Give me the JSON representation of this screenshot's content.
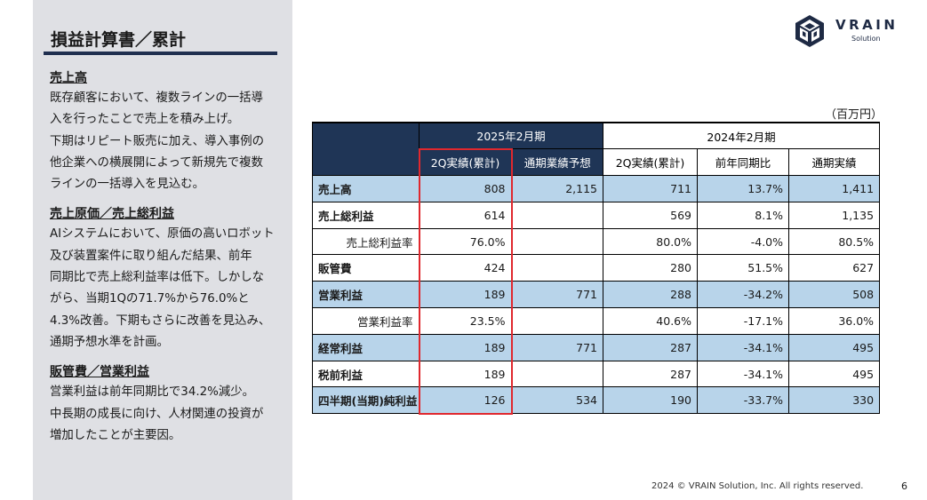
{
  "sidebar": {
    "title": "損益計算書／累計",
    "sections": [
      {
        "heading": "売上高",
        "lines": [
          "既存顧客において、複数ラインの一括導",
          "入を行ったことで売上を積み上げ。",
          "下期はリピート販売に加え、導入事例の",
          "他企業への横展開によって新規先で複数",
          "ラインの一括導入を見込む。"
        ]
      },
      {
        "heading": "売上原価／売上総利益",
        "lines": [
          "AIシステムにおいて、原価の高いロボット",
          "及び装置案件に取り組んだ結果、前年",
          "同期比で売上総利益率は低下。しかしな",
          "がら、当期1Qの71.7%から76.0%と",
          "4.3%改善。下期もさらに改善を見込み、",
          "通期予想水準を計画。"
        ]
      },
      {
        "heading": "販管費／営業利益",
        "lines": [
          "営業利益は前年同期比で34.2%減少。",
          "中長期の成長に向け、人材関連の投資が",
          "増加したことが主要因。"
        ]
      }
    ]
  },
  "logo": {
    "name": "VRAIN",
    "sub": "Solution"
  },
  "unit": "（百万円）",
  "table": {
    "period_current": "2025年2月期",
    "period_prior": "2024年2月期",
    "columns": [
      "2Q実績(累計)",
      "通期業績予想",
      "2Q実績(累計)",
      "前年同期比",
      "通期実績"
    ],
    "rows": [
      {
        "label": "売上高",
        "cells": [
          "808",
          "2,115",
          "711",
          "13.7%",
          "1,411"
        ]
      },
      {
        "label": "売上総利益",
        "cells": [
          "614",
          "",
          "569",
          "8.1%",
          "1,135"
        ]
      },
      {
        "label": "売上総利益率",
        "cells": [
          "76.0%",
          "",
          "80.0%",
          "-4.0%",
          "80.5%"
        ]
      },
      {
        "label": "販管費",
        "cells": [
          "424",
          "",
          "280",
          "51.5%",
          "627"
        ]
      },
      {
        "label": "営業利益",
        "cells": [
          "189",
          "771",
          "288",
          "-34.2%",
          "508"
        ]
      },
      {
        "label": "営業利益率",
        "cells": [
          "23.5%",
          "",
          "40.6%",
          "-17.1%",
          "36.0%"
        ]
      },
      {
        "label": "経常利益",
        "cells": [
          "189",
          "771",
          "287",
          "-34.1%",
          "495"
        ]
      },
      {
        "label": "税前利益",
        "cells": [
          "189",
          "",
          "287",
          "-34.1%",
          "495"
        ]
      },
      {
        "label": "四半期(当期)純利益",
        "cells": [
          "126",
          "534",
          "190",
          "-33.7%",
          "330"
        ]
      }
    ]
  },
  "footer": {
    "copyright": "2024 © VRAIN Solution, Inc. All rights reserved.",
    "page": "6"
  },
  "colors": {
    "navy": "#1f3556",
    "highlight": "#b8d4ea",
    "emphasis": "#e0282e",
    "sidebar_bg": "#dfe0e4"
  }
}
